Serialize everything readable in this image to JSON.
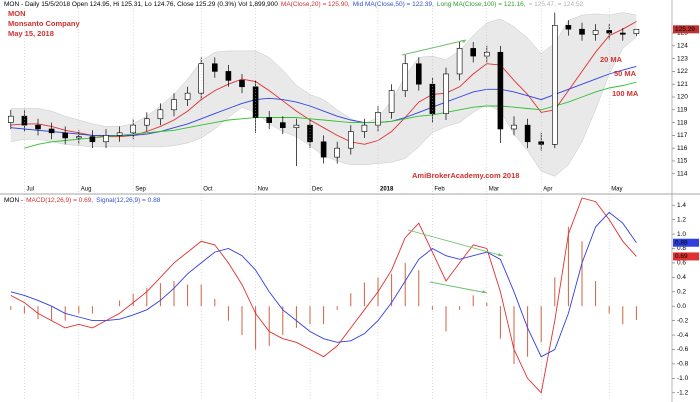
{
  "chart_data": [
    {
      "type": "candlestick",
      "header": [
        {
          "text": "MON - Daily 15/5/2018 Open 124.95, Hi 125.31, Lo 124.76, Close 125.29 (0.3%) Vol 1,899,900",
          "color": "#000000"
        },
        {
          "text": "MA(Close,20) = 125.90,",
          "color": "#d03030"
        },
        {
          "text": "Mid MA(Close,50) = 122.39,",
          "color": "#3050d0"
        },
        {
          "text": "Long MA(Close,100) = 121.16,",
          "color": "#30a030"
        },
        {
          "text": "= 125.47, = 124.52",
          "color": "#b0b0b0"
        }
      ],
      "annotations": [
        "MON",
        "Monsanto Company",
        "May 15, 2018",
        "20 MA",
        "50 MA",
        "100 MA",
        "AmiBrokerAcademy.com  2018"
      ],
      "categories": [
        null,
        "Jul",
        null,
        null,
        null,
        "Aug",
        null,
        null,
        null,
        "Sep",
        null,
        null,
        null,
        null,
        "Oct",
        null,
        null,
        null,
        "Nov",
        null,
        null,
        null,
        "Dec",
        null,
        null,
        null,
        null,
        "2018",
        null,
        null,
        null,
        "Feb",
        null,
        null,
        null,
        "Mar",
        null,
        null,
        null,
        "Apr",
        null,
        null,
        null,
        null,
        "May",
        null,
        null
      ],
      "open": [
        118.0,
        118.5,
        117.8,
        117.5,
        117.2,
        116.8,
        116.9,
        116.5,
        117.0,
        117.2,
        117.8,
        118.3,
        119.0,
        119.8,
        120.3,
        122.6,
        122.0,
        121.3,
        120.8,
        118.4,
        118.0,
        117.6,
        117.8,
        116.5,
        115.3,
        116.0,
        117.3,
        117.8,
        118.8,
        120.5,
        122.6,
        121.0,
        118.7,
        121.8,
        123.8,
        123.2,
        123.5,
        117.5,
        117.8,
        116.5,
        116.3,
        125.6,
        125.3,
        124.9,
        125.2,
        125.0,
        124.95
      ],
      "high": [
        119.0,
        119.0,
        118.3,
        118.0,
        117.7,
        117.4,
        117.4,
        117.5,
        117.7,
        118.3,
        118.8,
        119.5,
        120.3,
        120.8,
        123.1,
        123.1,
        122.5,
        121.8,
        121.3,
        118.9,
        118.5,
        118.3,
        118.3,
        117.0,
        116.5,
        117.8,
        118.3,
        119.3,
        121.0,
        123.3,
        123.1,
        121.5,
        122.3,
        124.3,
        124.3,
        124.0,
        124.0,
        118.5,
        118.3,
        117.2,
        126.6,
        126.0,
        125.8,
        125.7,
        125.7,
        125.4,
        125.31
      ],
      "low": [
        117.5,
        117.3,
        117.0,
        116.7,
        116.3,
        116.3,
        116.0,
        116.0,
        116.5,
        116.7,
        117.3,
        117.8,
        118.5,
        119.3,
        119.8,
        121.5,
        120.8,
        120.3,
        117.2,
        117.5,
        117.1,
        114.6,
        116.0,
        114.8,
        114.8,
        115.5,
        116.8,
        117.3,
        118.3,
        120.0,
        120.5,
        118.0,
        118.2,
        121.3,
        122.7,
        122.7,
        116.4,
        117.0,
        116.0,
        115.8,
        116.0,
        124.8,
        124.4,
        124.4,
        124.5,
        124.4,
        124.76
      ],
      "close": [
        118.5,
        117.8,
        117.5,
        117.2,
        116.8,
        116.9,
        116.5,
        117.0,
        117.2,
        117.8,
        118.3,
        119.0,
        119.8,
        120.3,
        122.6,
        122.0,
        121.3,
        120.8,
        118.4,
        118.0,
        117.6,
        117.8,
        116.5,
        115.3,
        116.0,
        117.3,
        117.8,
        118.8,
        120.5,
        122.6,
        121.0,
        118.7,
        121.8,
        123.8,
        123.2,
        123.5,
        117.5,
        117.8,
        116.5,
        116.3,
        125.6,
        125.3,
        124.9,
        125.2,
        125.0,
        124.9,
        125.29
      ],
      "up_color": "#ffffff",
      "down_color": "#000000",
      "band": {
        "color": "#e4e4e4",
        "upper": [
          119.1,
          119.1,
          119.1,
          118.9,
          118.5,
          118.2,
          117.9,
          117.7,
          117.7,
          117.9,
          118.5,
          119.3,
          120.2,
          121.4,
          122.8,
          123.5,
          123.6,
          123.6,
          123.6,
          123.1,
          122.1,
          120.9,
          120.2,
          119.8,
          119.0,
          118.3,
          117.9,
          118.4,
          119.7,
          121.6,
          123.1,
          123.2,
          122.9,
          123.6,
          124.8,
          125.8,
          126.1,
          125.5,
          124.6,
          123.4,
          124.2,
          126.0,
          126.4,
          126.5,
          126.4,
          126.6,
          126.4
        ],
        "lower": [
          116.5,
          116.7,
          116.7,
          116.5,
          116.3,
          116.2,
          116.1,
          116.1,
          116.1,
          116.1,
          116.1,
          116.1,
          116.2,
          116.4,
          116.8,
          117.5,
          118.4,
          119.2,
          118.8,
          117.9,
          117.3,
          116.9,
          116.2,
          115.4,
          115.0,
          114.7,
          114.7,
          114.8,
          114.9,
          115.2,
          116.1,
          117.2,
          117.7,
          118.0,
          118.8,
          119.4,
          118.9,
          117.1,
          115.8,
          114.2,
          113.8,
          114.7,
          116.5,
          119.0,
          121.8,
          123.8,
          124.7
        ]
      },
      "series": [
        {
          "color": "#e03030",
          "values": [
            117.8,
            117.9,
            117.9,
            117.7,
            117.4,
            117.2,
            117.0,
            116.9,
            116.9,
            117.0,
            117.3,
            117.7,
            118.2,
            118.9,
            119.8,
            120.5,
            121.0,
            121.4,
            121.2,
            120.5,
            119.7,
            118.9,
            118.2,
            117.6,
            117.0,
            116.5,
            116.3,
            116.6,
            117.3,
            118.4,
            119.6,
            120.2,
            120.3,
            120.8,
            121.8,
            122.6,
            122.5,
            121.3,
            120.2,
            118.8,
            119.0,
            120.5,
            122.0,
            123.5,
            124.8,
            125.3,
            125.9
          ]
        },
        {
          "color": "#3040e0",
          "values": [
            117.6,
            117.5,
            117.4,
            117.3,
            117.2,
            117.1,
            117.0,
            117.0,
            117.0,
            117.0,
            117.1,
            117.3,
            117.6,
            117.9,
            118.3,
            118.7,
            119.1,
            119.5,
            119.8,
            119.9,
            119.8,
            119.6,
            119.3,
            118.9,
            118.5,
            118.2,
            118.0,
            118.0,
            118.1,
            118.4,
            118.8,
            119.2,
            119.6,
            120.0,
            120.4,
            120.6,
            120.6,
            120.4,
            120.1,
            119.8,
            120.2,
            120.6,
            121.0,
            121.4,
            121.8,
            122.1,
            122.39
          ]
        },
        {
          "color": "#30c030",
          "values": [
            null,
            116.0,
            116.3,
            116.5,
            116.6,
            116.7,
            116.8,
            116.9,
            117.0,
            117.1,
            117.2,
            117.3,
            117.4,
            117.6,
            117.8,
            118.0,
            118.2,
            118.3,
            118.4,
            118.4,
            118.4,
            118.4,
            118.3,
            118.2,
            118.1,
            118.0,
            118.0,
            118.0,
            118.1,
            118.3,
            118.5,
            118.6,
            118.8,
            119.0,
            119.2,
            119.3,
            119.3,
            119.2,
            119.1,
            119.0,
            119.3,
            119.6,
            120.0,
            120.4,
            120.7,
            120.9,
            121.16
          ]
        }
      ],
      "last_tag": 125.29,
      "last_tag_color": "#c03030",
      "ylim": [
        113.2,
        126.8
      ],
      "yticks": [
        114,
        115,
        116,
        117,
        118,
        119,
        120,
        121,
        122,
        123,
        124,
        125
      ],
      "xgrid": true
    },
    {
      "type": "macd",
      "header": [
        {
          "text": "MON -",
          "color": "#000000"
        },
        {
          "text": "MACD(12,26,9) = 0.69,",
          "color": "#d03030"
        },
        {
          "text": "Signal(12,26,9) = 0.88",
          "color": "#3050d0"
        }
      ],
      "series": [
        {
          "color": "#e03030",
          "values": [
            0.15,
            0.05,
            -0.1,
            -0.2,
            -0.3,
            -0.25,
            -0.3,
            -0.2,
            -0.1,
            0.05,
            0.2,
            0.4,
            0.6,
            0.75,
            0.9,
            0.85,
            0.6,
            0.3,
            -0.1,
            -0.35,
            -0.45,
            -0.5,
            -0.6,
            -0.7,
            -0.55,
            -0.3,
            -0.05,
            0.2,
            0.5,
            0.95,
            1.15,
            0.75,
            0.35,
            0.6,
            0.85,
            0.8,
            0.2,
            -0.6,
            -1.0,
            -1.2,
            -0.2,
            1.0,
            1.5,
            1.45,
            1.2,
            0.9,
            0.69
          ]
        },
        {
          "color": "#3040e0",
          "values": [
            0.2,
            0.15,
            0.08,
            0.0,
            -0.1,
            -0.15,
            -0.2,
            -0.2,
            -0.18,
            -0.12,
            -0.05,
            0.08,
            0.25,
            0.45,
            0.6,
            0.75,
            0.8,
            0.7,
            0.5,
            0.2,
            -0.05,
            -0.2,
            -0.35,
            -0.45,
            -0.5,
            -0.48,
            -0.38,
            -0.2,
            0.05,
            0.35,
            0.65,
            0.8,
            0.7,
            0.65,
            0.7,
            0.75,
            0.65,
            0.2,
            -0.3,
            -0.7,
            -0.6,
            -0.1,
            0.6,
            1.1,
            1.3,
            1.15,
            0.88
          ]
        }
      ],
      "histogram": {
        "color": "#d06040",
        "values": [
          -0.05,
          -0.1,
          -0.18,
          -0.2,
          -0.2,
          -0.1,
          -0.1,
          0,
          0.08,
          0.17,
          0.25,
          0.32,
          0.35,
          0.3,
          0.3,
          0.1,
          -0.2,
          -0.4,
          -0.6,
          -0.55,
          -0.4,
          -0.3,
          -0.25,
          -0.25,
          -0.05,
          0.18,
          0.33,
          0.4,
          0.45,
          0.6,
          0.5,
          -0.05,
          -0.35,
          -0.05,
          0.15,
          0.05,
          -0.45,
          -0.8,
          -0.7,
          -0.5,
          0.4,
          1.1,
          0.9,
          0.35,
          -0.1,
          -0.25,
          -0.19
        ]
      },
      "tags": [
        {
          "value": 0.88,
          "color": "#3040e0"
        },
        {
          "value": 0.69,
          "color": "#e03030"
        }
      ],
      "ylim": [
        -1.3,
        1.5
      ],
      "yticks": [
        -1.2,
        {
          "value": -1,
          "label": "-1.0"
        },
        -0.8,
        -0.6,
        -0.4,
        -0.2,
        {
          "value": 0,
          "label": "0.0"
        },
        0.2,
        0.4,
        0.6,
        0.8,
        {
          "value": 1,
          "label": "1.0"
        },
        1.2,
        1.4
      ],
      "xgrid": true
    }
  ]
}
